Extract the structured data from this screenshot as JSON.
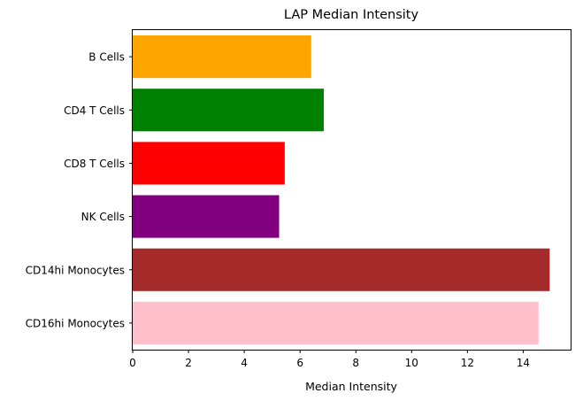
{
  "chart_data": {
    "type": "bar",
    "orientation": "horizontal",
    "title": "LAP Median Intensity",
    "xlabel": "Median Intensity",
    "ylabel": "",
    "xlim": [
      0,
      15.7
    ],
    "x_ticks": [
      0,
      2,
      4,
      6,
      8,
      10,
      12,
      14
    ],
    "grid": false,
    "categories": [
      "B Cells",
      "CD4 T Cells",
      "CD8 T Cells",
      "NK Cells",
      "CD14hi Monocytes",
      "CD16hi Monocytes"
    ],
    "values": [
      6.4,
      6.85,
      5.45,
      5.25,
      14.95,
      14.55
    ],
    "colors": [
      "#FFA500",
      "#008000",
      "#FF0000",
      "#800080",
      "#A52A2A",
      "#FFC0CB"
    ]
  }
}
